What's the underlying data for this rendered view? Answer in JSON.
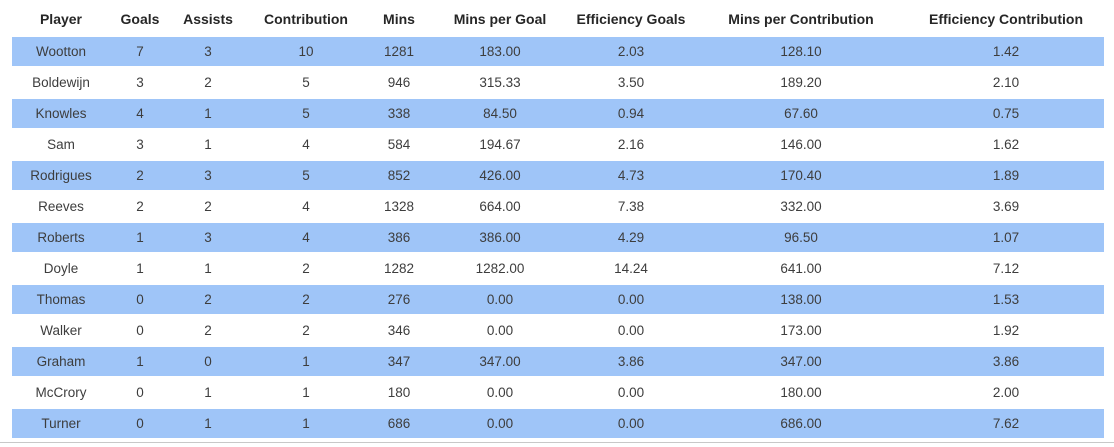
{
  "chart_data": {
    "type": "table",
    "columns": [
      "Player",
      "Goals",
      "Assists",
      "Contribution",
      "Mins",
      "Mins per Goal",
      "Efficiency Goals",
      "Mins per Contribution",
      "Efficiency Contribution"
    ],
    "rows": [
      [
        "Wootton",
        "7",
        "3",
        "10",
        "1281",
        "183.00",
        "2.03",
        "128.10",
        "1.42"
      ],
      [
        "Boldewijn",
        "3",
        "2",
        "5",
        "946",
        "315.33",
        "3.50",
        "189.20",
        "2.10"
      ],
      [
        "Knowles",
        "4",
        "1",
        "5",
        "338",
        "84.50",
        "0.94",
        "67.60",
        "0.75"
      ],
      [
        "Sam",
        "3",
        "1",
        "4",
        "584",
        "194.67",
        "2.16",
        "146.00",
        "1.62"
      ],
      [
        "Rodrigues",
        "2",
        "3",
        "5",
        "852",
        "426.00",
        "4.73",
        "170.40",
        "1.89"
      ],
      [
        "Reeves",
        "2",
        "2",
        "4",
        "1328",
        "664.00",
        "7.38",
        "332.00",
        "3.69"
      ],
      [
        "Roberts",
        "1",
        "3",
        "4",
        "386",
        "386.00",
        "4.29",
        "96.50",
        "1.07"
      ],
      [
        "Doyle",
        "1",
        "1",
        "2",
        "1282",
        "1282.00",
        "14.24",
        "641.00",
        "7.12"
      ],
      [
        "Thomas",
        "0",
        "2",
        "2",
        "276",
        "0.00",
        "0.00",
        "138.00",
        "1.53"
      ],
      [
        "Walker",
        "0",
        "2",
        "2",
        "346",
        "0.00",
        "0.00",
        "173.00",
        "1.92"
      ],
      [
        "Graham",
        "1",
        "0",
        "1",
        "347",
        "347.00",
        "3.86",
        "347.00",
        "3.86"
      ],
      [
        "McCrory",
        "0",
        "1",
        "1",
        "180",
        "0.00",
        "0.00",
        "180.00",
        "2.00"
      ],
      [
        "Turner",
        "0",
        "1",
        "1",
        "686",
        "0.00",
        "0.00",
        "686.00",
        "7.62"
      ]
    ],
    "layout": {
      "stripe_pattern": "odd rows highlighted",
      "text_align": "center",
      "legend_position": "none",
      "grid": "off"
    }
  },
  "colors": {
    "stripe": "#9fc5f8",
    "header_text": "#262626",
    "cell_text": "#3d3d3d",
    "bottom_border": "#c8c8c8",
    "background": "#ffffff"
  }
}
